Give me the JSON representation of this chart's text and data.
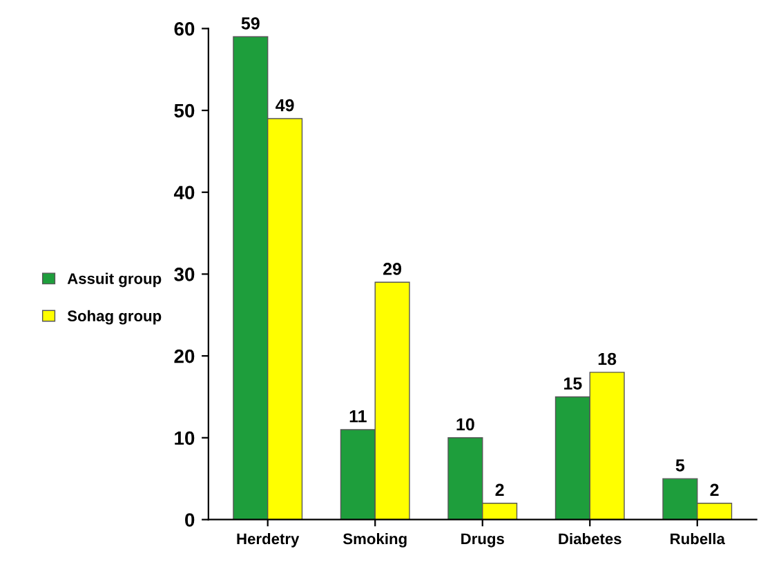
{
  "chart_data": {
    "type": "bar",
    "categories": [
      "Herdetry",
      "Smoking",
      "Drugs",
      "Diabetes",
      "Rubella"
    ],
    "series": [
      {
        "name": "Assuit group",
        "color": "#1e9e3c",
        "values": [
          59,
          11,
          10,
          15,
          5
        ]
      },
      {
        "name": "Sohag group",
        "color": "#ffff00",
        "values": [
          49,
          29,
          2,
          18,
          2
        ]
      }
    ],
    "ylim": [
      0,
      60
    ],
    "yticks": [
      0,
      10,
      20,
      30,
      40,
      50,
      60
    ],
    "data_labels": true,
    "legend": "left",
    "grid": false
  }
}
